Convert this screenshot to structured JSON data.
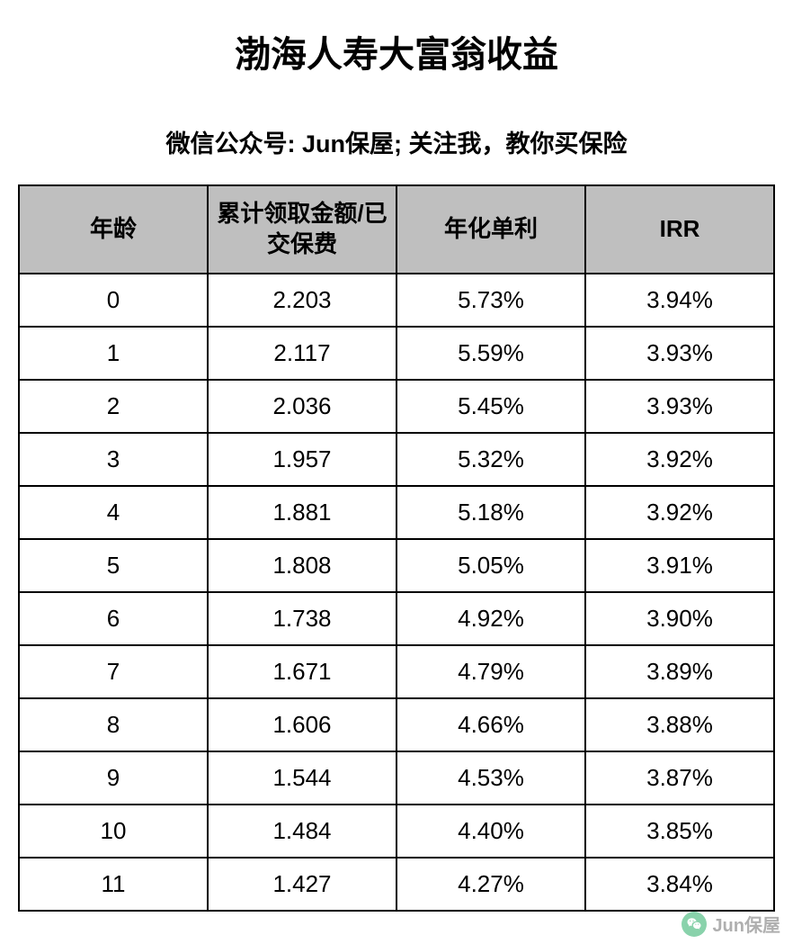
{
  "title": "渤海人寿大富翁收益",
  "subtitle": "微信公众号: Jun保屋; 关注我，教你买保险",
  "table": {
    "columns": [
      "年龄",
      "累计领取金额/已交保费",
      "年化单利",
      "IRR"
    ],
    "rows": [
      [
        "0",
        "2.203",
        "5.73%",
        "3.94%"
      ],
      [
        "1",
        "2.117",
        "5.59%",
        "3.93%"
      ],
      [
        "2",
        "2.036",
        "5.45%",
        "3.93%"
      ],
      [
        "3",
        "1.957",
        "5.32%",
        "3.92%"
      ],
      [
        "4",
        "1.881",
        "5.18%",
        "3.92%"
      ],
      [
        "5",
        "1.808",
        "5.05%",
        "3.91%"
      ],
      [
        "6",
        "1.738",
        "4.92%",
        "3.90%"
      ],
      [
        "7",
        "1.671",
        "4.79%",
        "3.89%"
      ],
      [
        "8",
        "1.606",
        "4.66%",
        "3.88%"
      ],
      [
        "9",
        "1.544",
        "4.53%",
        "3.87%"
      ],
      [
        "10",
        "1.484",
        "4.40%",
        "3.85%"
      ],
      [
        "11",
        "1.427",
        "4.27%",
        "3.84%"
      ]
    ],
    "header_bg": "#bfbfbf",
    "border_color": "#000000",
    "font_size_cell": 26,
    "font_size_header": 26
  },
  "watermark": {
    "text": "Jun保屋",
    "icon_bg": "#2aae67"
  }
}
